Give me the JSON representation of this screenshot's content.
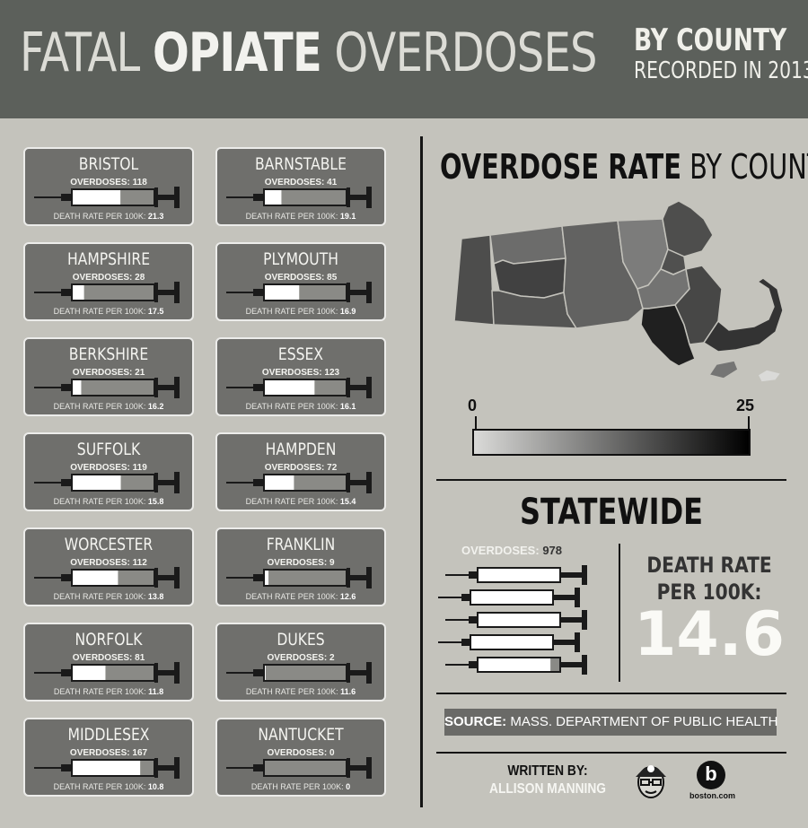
{
  "header": {
    "title_part1": "FATAL ",
    "title_bold": "OPIATE",
    "title_part2": " OVERDOSES",
    "by_county": "BY COUNTY",
    "recorded": "RECORDED IN 2013"
  },
  "card_labels": {
    "overdoses": "OVERDOSES:",
    "rate": "DEATH RATE PER 100K:"
  },
  "chart_data": {
    "type": "table",
    "title": "FATAL OPIATE OVERDOSES BY COUNTY",
    "columns": [
      "County",
      "Overdoses",
      "Death rate per 100K"
    ],
    "counties": [
      {
        "name": "BRISTOL",
        "overdoses": 118,
        "rate": 21.3
      },
      {
        "name": "BARNSTABLE",
        "overdoses": 41,
        "rate": 19.1
      },
      {
        "name": "HAMPSHIRE",
        "overdoses": 28,
        "rate": 17.5
      },
      {
        "name": "PLYMOUTH",
        "overdoses": 85,
        "rate": 16.9
      },
      {
        "name": "BERKSHIRE",
        "overdoses": 21,
        "rate": 16.2
      },
      {
        "name": "ESSEX",
        "overdoses": 123,
        "rate": 16.1
      },
      {
        "name": "SUFFOLK",
        "overdoses": 119,
        "rate": 15.8
      },
      {
        "name": "HAMPDEN",
        "overdoses": 72,
        "rate": 15.4
      },
      {
        "name": "WORCESTER",
        "overdoses": 112,
        "rate": 13.8
      },
      {
        "name": "FRANKLIN",
        "overdoses": 9,
        "rate": 12.6
      },
      {
        "name": "NORFOLK",
        "overdoses": 81,
        "rate": 11.8
      },
      {
        "name": "DUKES",
        "overdoses": 2,
        "rate": 11.6
      },
      {
        "name": "MIDDLESEX",
        "overdoses": 167,
        "rate": 10.8
      },
      {
        "name": "NANTUCKET",
        "overdoses": 0,
        "rate": 0
      }
    ],
    "syringe_max_overdoses": 200,
    "map": {
      "title_bold": "OVERDOSE RATE",
      "title_rest": " BY COUNTY",
      "scale_min": 0,
      "scale_max": 25,
      "scale_min_label": "0",
      "scale_max_label": "25",
      "color_low": "#dadad8",
      "color_high": "#000000"
    },
    "statewide": {
      "title": "STATEWIDE",
      "overdoses_label": "OVERDOSES:",
      "overdoses": 978,
      "rate_label_line1": "DEATH RATE",
      "rate_label_line2": "PER 100K:",
      "rate": 14.6,
      "rate_text": "14.6"
    }
  },
  "footer": {
    "source_bold": "SOURCE:",
    "source_text": " MASS. DEPARTMENT OF PUBLIC HEALTH",
    "written_by": "WRITTEN BY:",
    "author": "ALLISON MANNING",
    "logo_letter": "b",
    "logo_text": "boston.com"
  }
}
